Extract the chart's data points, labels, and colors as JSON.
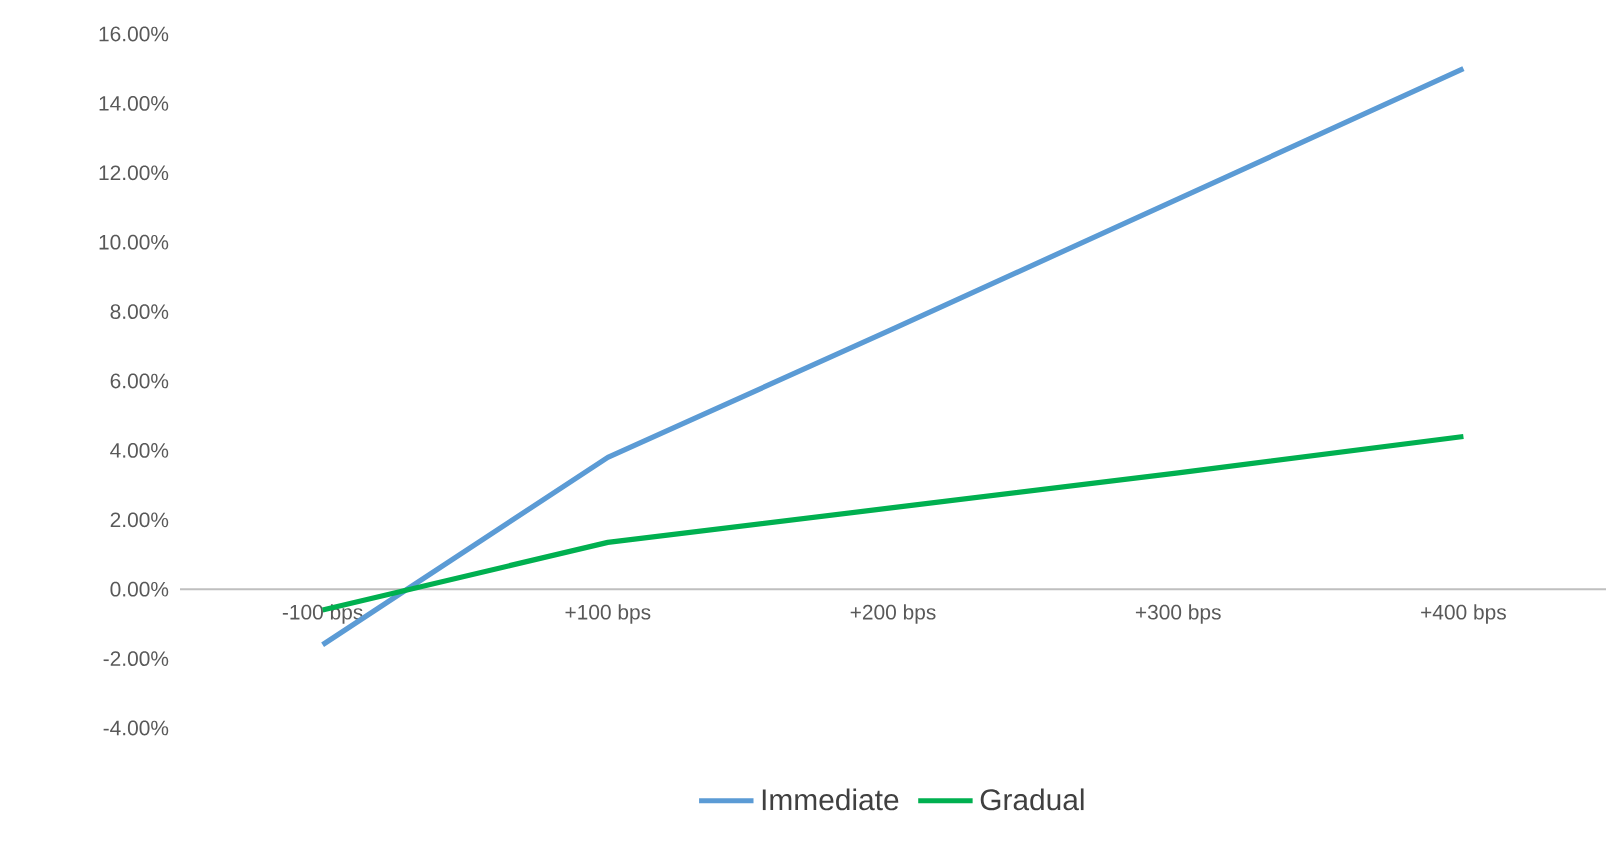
{
  "chart_data": {
    "type": "line",
    "categories": [
      "-100 bps",
      "+100 bps",
      "+200 bps",
      "+300 bps",
      "+400 bps"
    ],
    "series": [
      {
        "name": "Immediate",
        "color": "#5b9bd5",
        "values": [
          -1.6,
          3.8,
          7.5,
          11.25,
          15.0
        ]
      },
      {
        "name": "Gradual",
        "color": "#00b050",
        "values": [
          -0.6,
          1.35,
          2.35,
          3.35,
          4.4
        ]
      }
    ],
    "ylim": [
      -4,
      16
    ],
    "yticks": [
      {
        "value": -4,
        "label": "-4.00%"
      },
      {
        "value": -2,
        "label": "-2.00%"
      },
      {
        "value": 0,
        "label": "0.00%"
      },
      {
        "value": 2,
        "label": "2.00%"
      },
      {
        "value": 4,
        "label": "4.00%"
      },
      {
        "value": 6,
        "label": "6.00%"
      },
      {
        "value": 8,
        "label": "8.00%"
      },
      {
        "value": 10,
        "label": "10.00%"
      },
      {
        "value": 12,
        "label": "12.00%"
      },
      {
        "value": 14,
        "label": "14.00%"
      },
      {
        "value": 16,
        "label": "16.00%"
      }
    ],
    "grid": false,
    "legend": "bottom",
    "marker": "none",
    "line_style": "solid"
  }
}
